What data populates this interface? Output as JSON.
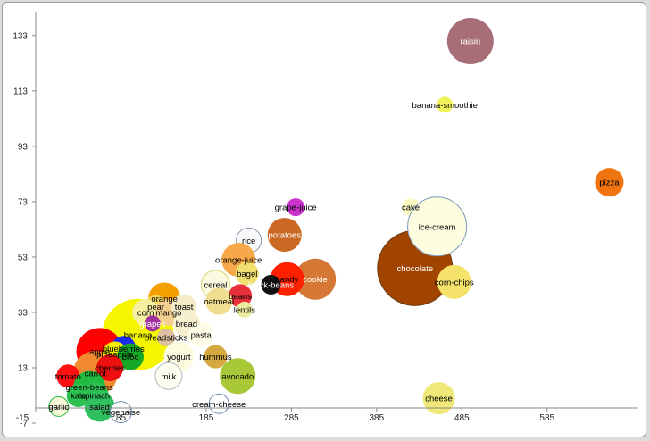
{
  "chart_data": {
    "type": "scatter",
    "variant": "bubble",
    "title": "",
    "xlabel": "",
    "ylabel": "",
    "xlim": [
      -15,
      690
    ],
    "ylim": [
      -7,
      141
    ],
    "xticks": [
      -15,
      85,
      185,
      285,
      385,
      485,
      585
    ],
    "yticks": [
      -7,
      13,
      33,
      53,
      73,
      93,
      113,
      133
    ],
    "grid": false,
    "legend": "none",
    "points": [
      {
        "label": "raisin",
        "x": 495,
        "y": 131,
        "r": 26,
        "color": "#a86e78",
        "labelColor": "#ffffff"
      },
      {
        "label": "banana-smoothie",
        "x": 465,
        "y": 108,
        "r": 9,
        "color": "#f2f25a",
        "labelColor": "#000000"
      },
      {
        "label": "pizza",
        "x": 658,
        "y": 80,
        "r": 16,
        "color": "#ef7410",
        "labelColor": "#000000"
      },
      {
        "label": "cheese",
        "x": 458,
        "y": 2,
        "r": 18,
        "color": "#f0e878",
        "labelColor": "#000000"
      },
      {
        "label": "cake",
        "x": 425,
        "y": 71,
        "r": 10,
        "color": "#fafac0",
        "labelColor": "#000000"
      },
      {
        "label": "chocolate",
        "x": 430,
        "y": 49,
        "r": 42,
        "color": "#a04400",
        "labelColor": "#ffffff",
        "stroke": "#6a3a10"
      },
      {
        "label": "ice-cream",
        "x": 456,
        "y": 64,
        "r": 33,
        "color": "#fdfde0",
        "labelColor": "#000000",
        "stroke": "#7a9ac0"
      },
      {
        "label": "corn-chips",
        "x": 476,
        "y": 44,
        "r": 19,
        "color": "#f5e26a",
        "labelColor": "#000000"
      },
      {
        "label": "cookie",
        "x": 313,
        "y": 45,
        "r": 23,
        "color": "#d57735",
        "labelColor": "#ffffff"
      },
      {
        "label": "potatoes",
        "x": 277,
        "y": 61,
        "r": 19,
        "color": "#cb6924",
        "labelColor": "#ffffff"
      },
      {
        "label": "grape-juice",
        "x": 290,
        "y": 71,
        "r": 10,
        "color": "#cc33cc",
        "labelColor": "#000000"
      },
      {
        "label": "candy",
        "x": 280,
        "y": 45,
        "r": 19,
        "color": "#ff2000",
        "labelColor": "#000000"
      },
      {
        "label": "black-beans",
        "x": 261,
        "y": 43,
        "r": 11,
        "color": "#111111",
        "labelColor": "#ffffff"
      },
      {
        "label": "rice",
        "x": 235,
        "y": 59,
        "r": 14,
        "color": "#fafafa",
        "labelColor": "#000000",
        "stroke": "#8a9ab0"
      },
      {
        "label": "orange-juice",
        "x": 223,
        "y": 52,
        "r": 19,
        "color": "#f7a848",
        "labelColor": "#000000"
      },
      {
        "label": "bagel",
        "x": 233,
        "y": 47,
        "r": 13,
        "color": "#f0e070",
        "labelColor": "#000000"
      },
      {
        "label": "beans",
        "x": 225,
        "y": 39,
        "r": 13,
        "color": "#e8303a",
        "labelColor": "#000000"
      },
      {
        "label": "lentils",
        "x": 230,
        "y": 34,
        "r": 9,
        "color": "#eaeaa0",
        "labelColor": "#000000"
      },
      {
        "label": "cereal",
        "x": 196,
        "y": 43,
        "r": 16,
        "color": "#fafae0",
        "labelColor": "#000000",
        "stroke": "#d4d46a"
      },
      {
        "label": "oatmeal",
        "x": 200,
        "y": 37,
        "r": 15,
        "color": "#f0de90",
        "labelColor": "#000000"
      },
      {
        "label": "banana",
        "x": 105,
        "y": 25,
        "r": 40,
        "color": "#f5f500",
        "labelColor": "#000000"
      },
      {
        "label": "orange",
        "x": 136,
        "y": 38,
        "r": 18,
        "color": "#f4a000",
        "labelColor": "#000000"
      },
      {
        "label": "pear",
        "x": 126,
        "y": 35,
        "r": 13,
        "color": "#f6d65c",
        "labelColor": "#000000"
      },
      {
        "label": "corn",
        "x": 114,
        "y": 33,
        "r": 15,
        "color": "#f5f0a0",
        "labelColor": "#000000"
      },
      {
        "label": "mango",
        "x": 141,
        "y": 33,
        "r": 15,
        "color": "#f4d090",
        "labelColor": "#000000"
      },
      {
        "label": "toast",
        "x": 159,
        "y": 35,
        "r": 14,
        "color": "#f5ebc8",
        "labelColor": "#000000"
      },
      {
        "label": "grapes",
        "x": 122,
        "y": 29,
        "r": 9,
        "color": "#a030a0",
        "labelColor": "#ffffff"
      },
      {
        "label": "bread",
        "x": 162,
        "y": 29,
        "r": 15,
        "color": "#f6f0d0",
        "labelColor": "#000000"
      },
      {
        "label": "breadsticks",
        "x": 138,
        "y": 24,
        "r": 10,
        "color": "#dcc0a0",
        "labelColor": "#000000"
      },
      {
        "label": "pasta",
        "x": 179,
        "y": 25,
        "r": 14,
        "color": "#fdfde8",
        "labelColor": "#000000"
      },
      {
        "label": "apple",
        "x": 60,
        "y": 19,
        "r": 26,
        "color": "#ff0000",
        "labelColor": "#000000"
      },
      {
        "label": "carrot",
        "x": 55,
        "y": 11,
        "r": 25,
        "color": "#f28a30",
        "labelColor": "#000000"
      },
      {
        "label": "blueberries",
        "x": 88,
        "y": 20,
        "r": 14,
        "color": "#1a2cf0",
        "labelColor": "#000000"
      },
      {
        "label": "pineapple",
        "x": 78,
        "y": 18,
        "r": 14,
        "color": "#f2f000",
        "labelColor": "#000000"
      },
      {
        "label": "broc",
        "x": 96,
        "y": 17,
        "r": 15,
        "color": "#16a826",
        "labelColor": "#000000"
      },
      {
        "label": "cherries",
        "x": 72,
        "y": 13,
        "r": 15,
        "color": "#ee1010",
        "labelColor": "#000000"
      },
      {
        "label": "yogurt",
        "x": 153,
        "y": 17,
        "r": 17,
        "color": "#fbfbe0",
        "labelColor": "#000000"
      },
      {
        "label": "hummus",
        "x": 196,
        "y": 17,
        "r": 13,
        "color": "#d6a840",
        "labelColor": "#000000"
      },
      {
        "label": "avocado",
        "x": 222,
        "y": 10,
        "r": 20,
        "color": "#a8c838",
        "labelColor": "#000000"
      },
      {
        "label": "milk",
        "x": 141,
        "y": 10,
        "r": 15,
        "color": "#fdfdf0",
        "labelColor": "#000000",
        "stroke": "#b0b8c8"
      },
      {
        "label": "tomato",
        "x": 23,
        "y": 10,
        "r": 13,
        "color": "#ff1111",
        "labelColor": "#000000"
      },
      {
        "label": "green-beans",
        "x": 48,
        "y": 6,
        "r": 18,
        "color": "#20bb40",
        "labelColor": "#000000"
      },
      {
        "label": "kale",
        "x": 35,
        "y": 3,
        "r": 13,
        "color": "#2cc050",
        "labelColor": "#000000"
      },
      {
        "label": "spinach",
        "x": 55,
        "y": 3,
        "r": 15,
        "color": "#2cc050",
        "labelColor": "#000000"
      },
      {
        "label": "salad",
        "x": 60,
        "y": -1,
        "r": 17,
        "color": "#30c060",
        "labelColor": "#000000"
      },
      {
        "label": "garlic",
        "x": 12,
        "y": -1,
        "r": 11,
        "color": "#f8f8d8",
        "labelColor": "#000000",
        "stroke": "#20bb40"
      },
      {
        "label": "vegenaise",
        "x": 85,
        "y": -3,
        "r": 12,
        "color": "#ffffff",
        "labelColor": "#000000",
        "stroke": "#6a8ab0"
      },
      {
        "label": "cream-cheese",
        "x": 200,
        "y": 0,
        "r": 11,
        "color": "#ffffff",
        "labelColor": "#000000",
        "stroke": "#6a8ab0"
      }
    ]
  }
}
